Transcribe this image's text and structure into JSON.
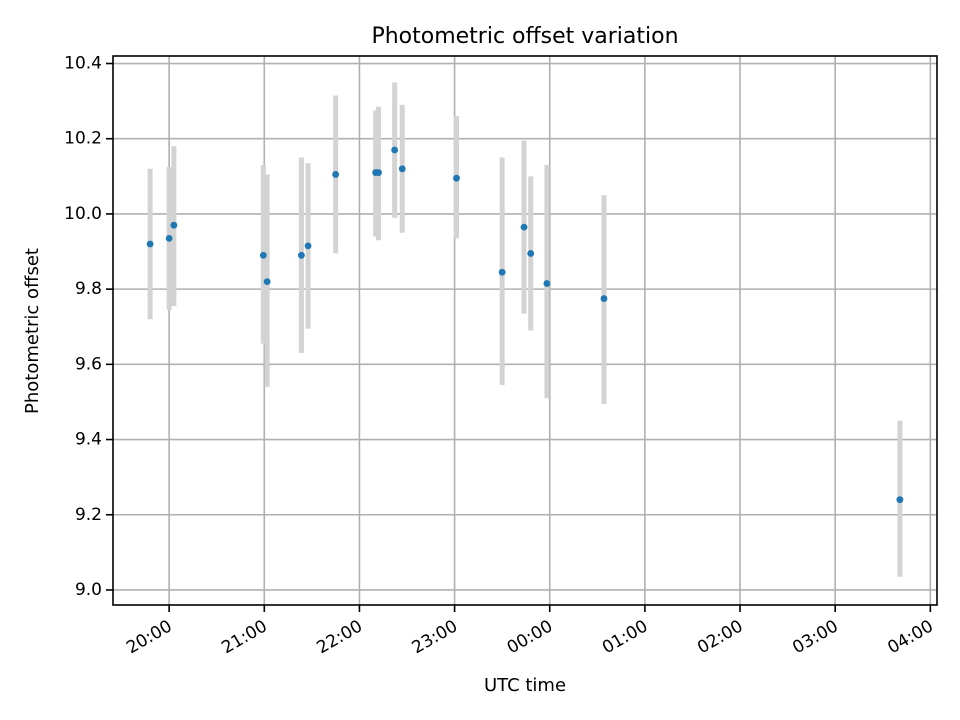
{
  "chart_data": {
    "type": "scatter",
    "title": "Photometric offset variation",
    "xlabel": "UTC time",
    "ylabel": "Photometric offset",
    "x_unit": "hours (UTC, continuing past midnight)",
    "xlim": [
      19.41,
      28.07
    ],
    "ylim": [
      8.96,
      10.42
    ],
    "xticks": [
      {
        "value": 20,
        "label": "20:00"
      },
      {
        "value": 21,
        "label": "21:00"
      },
      {
        "value": 22,
        "label": "22:00"
      },
      {
        "value": 23,
        "label": "23:00"
      },
      {
        "value": 24,
        "label": "00:00"
      },
      {
        "value": 25,
        "label": "01:00"
      },
      {
        "value": 26,
        "label": "02:00"
      },
      {
        "value": 27,
        "label": "03:00"
      },
      {
        "value": 28,
        "label": "04:00"
      }
    ],
    "yticks": [
      {
        "value": 9.0,
        "label": "9.0"
      },
      {
        "value": 9.2,
        "label": "9.2"
      },
      {
        "value": 9.4,
        "label": "9.4"
      },
      {
        "value": 9.6,
        "label": "9.6"
      },
      {
        "value": 9.8,
        "label": "9.8"
      },
      {
        "value": 10.0,
        "label": "10.0"
      },
      {
        "value": 10.2,
        "label": "10.2"
      },
      {
        "value": 10.4,
        "label": "10.4"
      }
    ],
    "grid": true,
    "marker_color": "#1f77b4",
    "errorbar_color": "#d3d3d3",
    "points": [
      {
        "x": 19.8,
        "y": 9.92,
        "lo": 9.72,
        "hi": 10.12
      },
      {
        "x": 20.0,
        "y": 9.935,
        "lo": 9.745,
        "hi": 10.125
      },
      {
        "x": 20.05,
        "y": 9.97,
        "lo": 9.755,
        "hi": 10.18
      },
      {
        "x": 20.99,
        "y": 9.89,
        "lo": 9.655,
        "hi": 10.13
      },
      {
        "x": 21.03,
        "y": 9.82,
        "lo": 9.54,
        "hi": 10.105
      },
      {
        "x": 21.39,
        "y": 9.89,
        "lo": 9.63,
        "hi": 10.15
      },
      {
        "x": 21.46,
        "y": 9.915,
        "lo": 9.695,
        "hi": 10.135
      },
      {
        "x": 21.75,
        "y": 10.105,
        "lo": 9.895,
        "hi": 10.315
      },
      {
        "x": 22.17,
        "y": 10.11,
        "lo": 9.94,
        "hi": 10.275
      },
      {
        "x": 22.2,
        "y": 10.11,
        "lo": 9.93,
        "hi": 10.285
      },
      {
        "x": 22.37,
        "y": 10.17,
        "lo": 9.99,
        "hi": 10.35
      },
      {
        "x": 22.45,
        "y": 10.12,
        "lo": 9.95,
        "hi": 10.29
      },
      {
        "x": 23.02,
        "y": 10.095,
        "lo": 9.935,
        "hi": 10.26
      },
      {
        "x": 23.5,
        "y": 9.845,
        "lo": 9.545,
        "hi": 10.15
      },
      {
        "x": 23.73,
        "y": 9.965,
        "lo": 9.735,
        "hi": 10.195
      },
      {
        "x": 23.8,
        "y": 9.895,
        "lo": 9.69,
        "hi": 10.1
      },
      {
        "x": 23.97,
        "y": 9.815,
        "lo": 9.51,
        "hi": 10.13
      },
      {
        "x": 24.57,
        "y": 9.775,
        "lo": 9.495,
        "hi": 10.05
      },
      {
        "x": 27.68,
        "y": 9.24,
        "lo": 9.035,
        "hi": 9.45
      }
    ]
  }
}
